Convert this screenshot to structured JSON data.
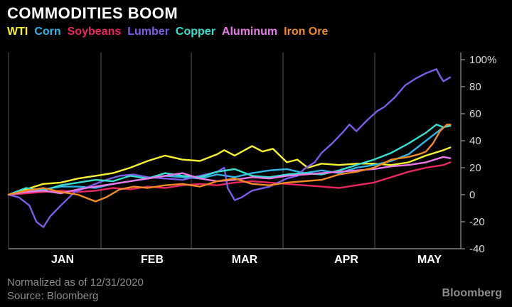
{
  "chart_data": {
    "type": "line",
    "title": "COMMODITIES BOOM",
    "x_categories": [
      "JAN",
      "FEB",
      "MAR",
      "APR",
      "MAY"
    ],
    "x_range_days": [
      0,
      130
    ],
    "ylim": [
      -40,
      100
    ],
    "yticks": [
      -40,
      -20,
      0,
      20,
      40,
      60,
      80,
      100
    ],
    "ytick_labels": [
      "-40",
      "-20",
      "0",
      "20",
      "40",
      "60",
      "80",
      "100%"
    ],
    "grid": "vertical month lines",
    "legend_position": "top-left",
    "series": [
      {
        "name": "WTI",
        "color": "#f5f230",
        "x": [
          0,
          5,
          10,
          15,
          20,
          25,
          30,
          35,
          40,
          45,
          50,
          55,
          60,
          62,
          65,
          70,
          73,
          76,
          80,
          83,
          86,
          90,
          95,
          100,
          105,
          110,
          115,
          120,
          125,
          127
        ],
        "y": [
          0,
          4,
          8,
          9,
          12,
          14,
          16,
          20,
          25,
          29,
          26,
          25,
          30,
          33,
          29,
          36,
          32,
          34,
          24,
          26,
          20,
          23,
          22,
          23,
          23,
          22,
          24,
          29,
          33,
          35
        ]
      },
      {
        "name": "Corn",
        "color": "#2fb4e6",
        "x": [
          0,
          5,
          10,
          15,
          20,
          25,
          30,
          35,
          40,
          45,
          50,
          55,
          60,
          65,
          70,
          75,
          80,
          85,
          90,
          95,
          100,
          105,
          110,
          115,
          120,
          123,
          125,
          127
        ],
        "y": [
          0,
          2,
          4,
          6,
          6,
          5,
          8,
          10,
          12,
          14,
          13,
          12,
          15,
          13,
          16,
          18,
          19,
          16,
          18,
          16,
          20,
          22,
          25,
          30,
          40,
          46,
          50,
          52
        ]
      },
      {
        "name": "Soybeans",
        "color": "#e8265f",
        "x": [
          0,
          5,
          10,
          15,
          20,
          25,
          30,
          35,
          40,
          45,
          50,
          55,
          60,
          65,
          70,
          75,
          80,
          85,
          90,
          95,
          100,
          105,
          110,
          115,
          120,
          125,
          127
        ],
        "y": [
          0,
          1,
          2,
          3,
          2,
          3,
          5,
          4,
          6,
          5,
          7,
          8,
          7,
          9,
          10,
          9,
          8,
          7,
          6,
          5,
          7,
          9,
          13,
          17,
          20,
          22,
          24
        ]
      },
      {
        "name": "Lumber",
        "color": "#7b5ce6",
        "x": [
          0,
          3,
          6,
          8,
          10,
          12,
          15,
          17,
          19,
          22,
          25,
          28,
          32,
          36,
          40,
          45,
          50,
          55,
          60,
          62,
          63,
          65,
          67,
          70,
          75,
          80,
          83,
          85,
          88,
          90,
          93,
          96,
          98,
          100,
          103,
          106,
          108,
          111,
          114,
          117,
          120,
          123,
          124,
          125,
          127
        ],
        "y": [
          0,
          -2,
          -8,
          -20,
          -24,
          -16,
          -8,
          -3,
          2,
          5,
          8,
          11,
          14,
          15,
          13,
          12,
          11,
          14,
          17,
          20,
          5,
          -4,
          -2,
          3,
          6,
          12,
          14,
          19,
          24,
          31,
          38,
          46,
          52,
          47,
          55,
          62,
          65,
          72,
          81,
          86,
          90,
          93,
          88,
          84,
          87
        ]
      },
      {
        "name": "Copper",
        "color": "#36e0cf",
        "x": [
          0,
          5,
          10,
          15,
          20,
          25,
          30,
          35,
          40,
          45,
          50,
          55,
          60,
          65,
          70,
          75,
          80,
          85,
          90,
          95,
          100,
          105,
          110,
          115,
          120,
          123,
          125,
          127
        ],
        "y": [
          0,
          5,
          3,
          7,
          9,
          11,
          10,
          14,
          12,
          16,
          14,
          13,
          17,
          19,
          14,
          13,
          15,
          16,
          15,
          18,
          22,
          26,
          31,
          38,
          46,
          52,
          50,
          51
        ]
      },
      {
        "name": "Aluminum",
        "color": "#e87ae8",
        "x": [
          0,
          5,
          10,
          15,
          20,
          25,
          30,
          35,
          40,
          45,
          50,
          55,
          60,
          65,
          70,
          75,
          80,
          85,
          90,
          95,
          100,
          105,
          110,
          115,
          120,
          125,
          127
        ],
        "y": [
          0,
          2,
          3,
          1,
          4,
          6,
          8,
          10,
          12,
          14,
          16,
          12,
          10,
          11,
          13,
          12,
          14,
          15,
          16,
          17,
          18,
          19,
          21,
          22,
          24,
          28,
          27
        ]
      },
      {
        "name": "Iron Ore",
        "color": "#f08a24",
        "x": [
          0,
          5,
          10,
          15,
          20,
          25,
          28,
          32,
          36,
          40,
          45,
          50,
          55,
          60,
          65,
          70,
          75,
          80,
          85,
          90,
          95,
          100,
          105,
          110,
          115,
          118,
          120,
          122,
          124,
          126,
          127
        ],
        "y": [
          0,
          3,
          5,
          2,
          0,
          -5,
          -2,
          4,
          6,
          5,
          7,
          8,
          6,
          10,
          12,
          8,
          7,
          9,
          10,
          11,
          15,
          17,
          20,
          26,
          28,
          30,
          32,
          38,
          47,
          52,
          52
        ]
      }
    ]
  },
  "footnote": {
    "line1": "Normalized as of 12/31/2020",
    "line2": "Source: Bloomberg"
  },
  "brand": "Bloomberg"
}
